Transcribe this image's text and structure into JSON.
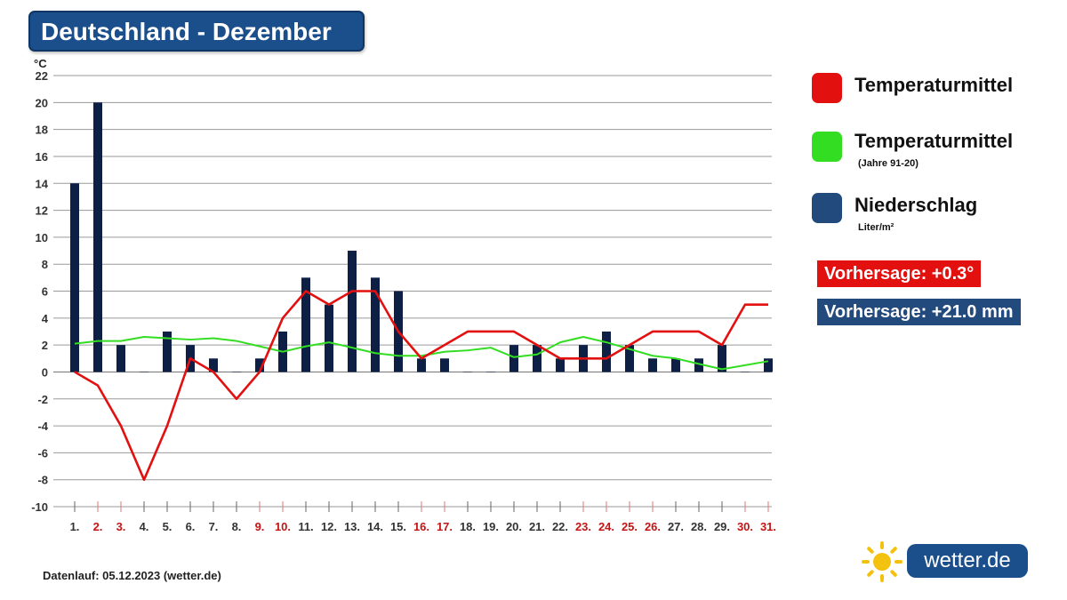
{
  "header": {
    "title": "Deutschland - Dezember"
  },
  "chart_data": {
    "type": "bar+line",
    "unit_label": "°C",
    "ylim": [
      -10,
      22
    ],
    "yticks": [
      -10,
      -8,
      -6,
      -4,
      -2,
      0,
      2,
      4,
      6,
      8,
      10,
      12,
      14,
      16,
      18,
      20,
      22
    ],
    "grid": true,
    "categories": [
      "1.",
      "2.",
      "3.",
      "4.",
      "5.",
      "6.",
      "7.",
      "8.",
      "9.",
      "10.",
      "11.",
      "12.",
      "13.",
      "14.",
      "15.",
      "16.",
      "17.",
      "18.",
      "19.",
      "20.",
      "21.",
      "22.",
      "23.",
      "24.",
      "25.",
      "26.",
      "27.",
      "28.",
      "29.",
      "30.",
      "31."
    ],
    "weekend_days": [
      2,
      3,
      9,
      10,
      16,
      17,
      23,
      24,
      25,
      26,
      30,
      31
    ],
    "series": [
      {
        "name": "Temperaturmittel",
        "kind": "line",
        "color": "#e31010",
        "values": [
          0,
          -1,
          -4,
          -8,
          -4,
          1,
          0,
          -2,
          0,
          4,
          6,
          5,
          6,
          6,
          3,
          1,
          2,
          3,
          3,
          3,
          2,
          1,
          1,
          1,
          2,
          3,
          3,
          3,
          2,
          5,
          5
        ]
      },
      {
        "name": "Temperaturmittel",
        "kind": "line",
        "color": "#33dd22",
        "values": [
          2.1,
          2.3,
          2.3,
          2.6,
          2.5,
          2.4,
          2.5,
          2.3,
          1.9,
          1.5,
          1.9,
          2.2,
          1.8,
          1.4,
          1.2,
          1.2,
          1.5,
          1.6,
          1.8,
          1.1,
          1.3,
          2.2,
          2.6,
          2.2,
          1.7,
          1.2,
          1.0,
          0.6,
          0.2,
          0.5,
          0.8
        ]
      },
      {
        "name": "Niederschlag",
        "kind": "bar",
        "color": "#0e1f45",
        "values": [
          14,
          20,
          2,
          0,
          3,
          2,
          1,
          0,
          1,
          3,
          7,
          5,
          9,
          7,
          6,
          1,
          1,
          0,
          0,
          2,
          2,
          1,
          2,
          3,
          2,
          1,
          1,
          1,
          2,
          0,
          1
        ]
      }
    ]
  },
  "legend": {
    "items": [
      {
        "label": "Temperaturmittel",
        "sub": "",
        "color": "#e31010"
      },
      {
        "label": "Temperaturmittel",
        "sub": "(Jahre 91-20)",
        "color": "#33dd22"
      },
      {
        "label": "Niederschlag",
        "sub": "Liter/m²",
        "color": "#234a7c"
      }
    ]
  },
  "forecasts": {
    "temperature": {
      "text": "Vorhersage: +0.3°",
      "color": "#e31010"
    },
    "precipitation": {
      "text": "Vorhersage: +21.0 mm",
      "color": "#234a7c"
    }
  },
  "footer": {
    "text": "Datenlauf: 05.12.2023 (wetter.de)"
  },
  "logo": {
    "text": "wetter.de",
    "sun_color": "#f3c20f"
  }
}
